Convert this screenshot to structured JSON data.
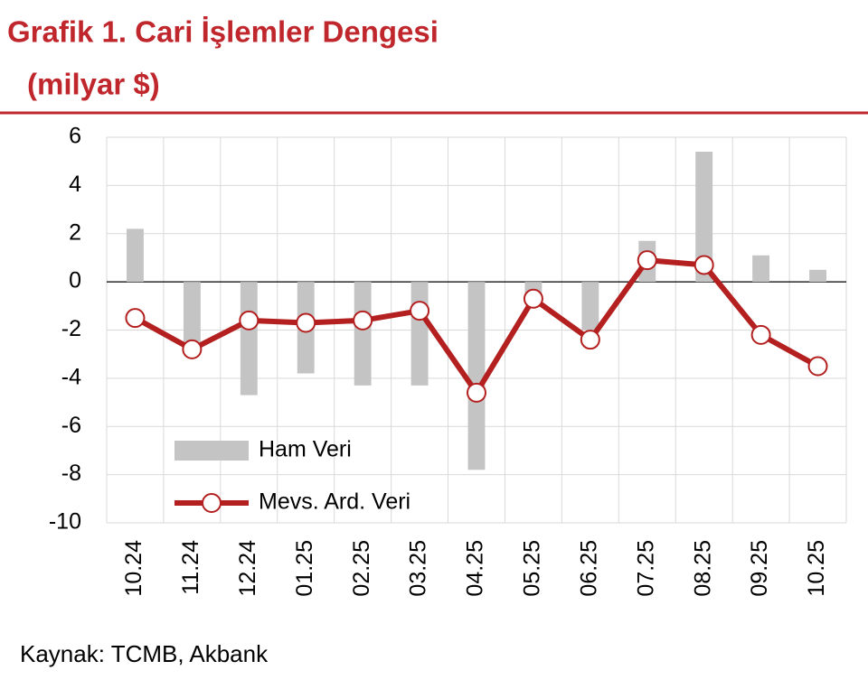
{
  "chart_data": {
    "type": "combo",
    "title": "Grafik 1. Cari İşlemler Dengesi",
    "subtitle": "(milyar $)",
    "source": "Kaynak: TCMB, Akbank",
    "categories": [
      "10.24",
      "11.24",
      "12.24",
      "01.25",
      "02.25",
      "03.25",
      "04.25",
      "05.25",
      "06.25",
      "07.25",
      "08.25",
      "09.25",
      "10.25"
    ],
    "series": [
      {
        "name": "Ham Veri",
        "type": "bar",
        "color": "#c4c4c4",
        "values": [
          2.2,
          -2.5,
          -4.7,
          -3.8,
          -4.3,
          -4.3,
          -7.8,
          -0.6,
          -2.0,
          1.7,
          5.4,
          1.1,
          0.5
        ]
      },
      {
        "name": "Mevs. Ard. Veri",
        "type": "line",
        "color": "#b3201f",
        "values": [
          -1.5,
          -2.8,
          -1.6,
          -1.7,
          -1.6,
          -1.2,
          -4.6,
          -0.7,
          -2.4,
          0.9,
          0.7,
          -2.2,
          -3.5
        ]
      }
    ],
    "ylim": [
      -10,
      6
    ],
    "yticks": [
      -10,
      -8,
      -6,
      -4,
      -2,
      0,
      2,
      4,
      6
    ],
    "grid": true,
    "title_color": "#c0272d"
  }
}
